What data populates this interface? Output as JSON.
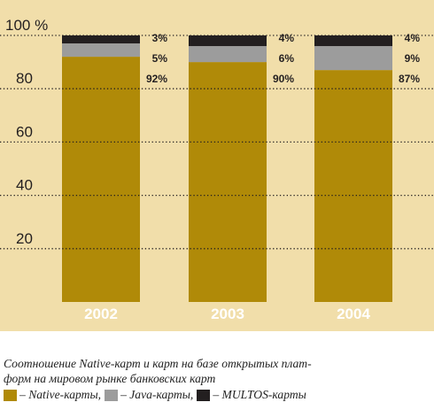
{
  "chart_data": {
    "type": "stacked-bar",
    "categories": [
      "2002",
      "2003",
      "2004"
    ],
    "series": [
      {
        "name": "Native-карты",
        "values": [
          92,
          90,
          87
        ],
        "labels": [
          "92%",
          "90%",
          "87%"
        ],
        "color": "#b08a08"
      },
      {
        "name": "Java-карты",
        "values": [
          5,
          6,
          9
        ],
        "labels": [
          "5%",
          "6%",
          "9%"
        ],
        "color": "#9c9c9c"
      },
      {
        "name": "MULTOS-карты",
        "values": [
          3,
          4,
          4
        ],
        "labels": [
          "3%",
          "4%",
          "4%"
        ],
        "color": "#231f20"
      }
    ],
    "ylim": [
      0,
      100
    ],
    "yticks": [
      20,
      40,
      60,
      80
    ],
    "ytick_labels": [
      "20",
      "40",
      "60",
      "80"
    ],
    "ytop_label": "100 %",
    "grid": "dotted",
    "background": "#f1deaa",
    "category_label_color": "#ffffff"
  },
  "caption": {
    "line1": "Соотношение Native-карт и карт на базе открытых плат-",
    "line2": "форм на мировом рынке банковских карт"
  },
  "legend": {
    "native": "– Native-карты,",
    "java": "– Java-карты,",
    "multos": "– MULTOS-карты"
  }
}
